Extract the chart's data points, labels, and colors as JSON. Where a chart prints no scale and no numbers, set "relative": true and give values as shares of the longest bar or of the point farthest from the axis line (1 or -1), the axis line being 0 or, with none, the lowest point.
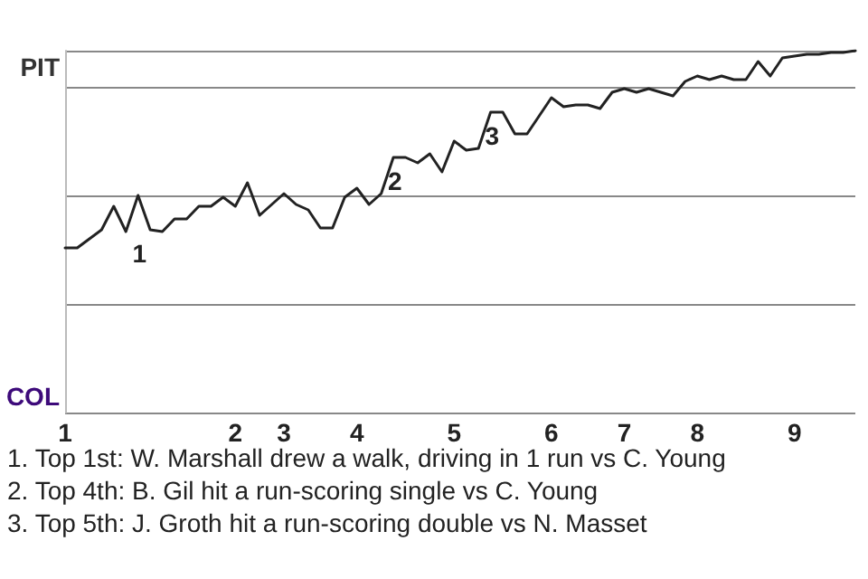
{
  "chart_data": {
    "type": "line",
    "relative": true,
    "categories": [
      "1",
      null,
      null,
      null,
      null,
      null,
      null,
      null,
      null,
      null,
      null,
      null,
      null,
      null,
      "2",
      null,
      null,
      null,
      "3",
      null,
      null,
      null,
      null,
      null,
      "4",
      null,
      null,
      null,
      null,
      null,
      null,
      null,
      "5",
      null,
      null,
      null,
      null,
      null,
      null,
      null,
      "6",
      null,
      null,
      null,
      null,
      null,
      "7",
      null,
      null,
      null,
      null,
      null,
      "8",
      null,
      null,
      null,
      null,
      null,
      null,
      null,
      "9",
      null,
      null,
      null,
      null,
      null
    ],
    "series": [
      {
        "color": "#222222",
        "values": [
          0.455,
          0.455,
          0.48,
          0.505,
          0.57,
          0.5,
          0.6,
          0.505,
          0.5,
          0.535,
          0.535,
          0.57,
          0.57,
          0.595,
          0.57,
          0.635,
          0.545,
          0.575,
          0.605,
          0.575,
          0.56,
          0.51,
          0.51,
          0.595,
          0.62,
          0.575,
          0.605,
          0.705,
          0.705,
          0.69,
          0.715,
          0.665,
          0.75,
          0.725,
          0.73,
          0.83,
          0.83,
          0.77,
          0.77,
          0.82,
          0.87,
          0.845,
          0.85,
          0.85,
          0.84,
          0.885,
          0.895,
          0.885,
          0.895,
          0.885,
          0.875,
          0.915,
          0.93,
          0.92,
          0.93,
          0.92,
          0.92,
          0.97,
          0.93,
          0.98,
          0.985,
          0.99,
          0.99,
          0.995,
          0.995,
          1
        ]
      }
    ],
    "grid": "y",
    "marker": "none",
    "annotations": [
      "PIT",
      "COL",
      {
        "text": "1",
        "y": 0.505
      },
      {
        "text": "2",
        "y": 0.705
      },
      {
        "text": "3",
        "y": 0.83
      },
      "1. Top 1st: W. Marshall drew a walk, driving in 1 run vs C. Young",
      "2. Top 4th: B. Gil hit a run-scoring single vs C. Young",
      "3. Top 5th: J. Groth hit a run-scoring double vs N. Masset"
    ]
  }
}
